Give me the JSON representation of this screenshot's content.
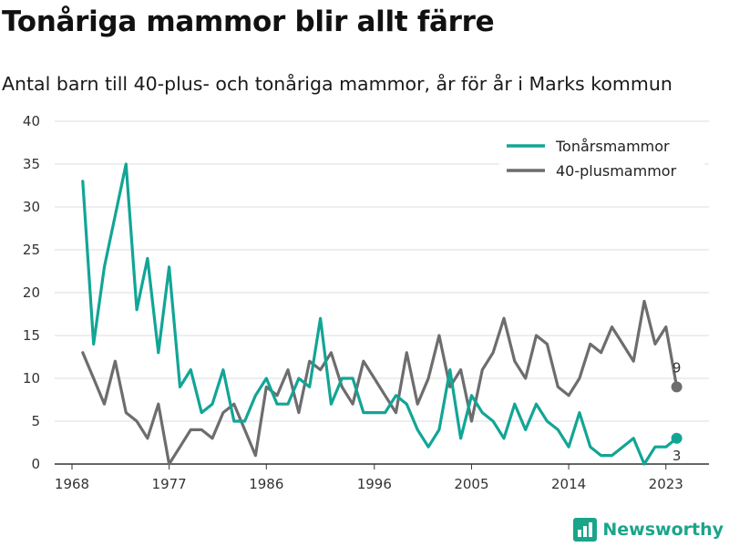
{
  "title": "Tonåriga mammor blir allt färre",
  "subtitle": "Antal barn till 40-plus- och tonåriga mammor, år för år i Marks kommun",
  "brand": "Newsworthy",
  "colors": {
    "teal": "#12a596",
    "gray": "#6d6d6f"
  },
  "chart_data": {
    "type": "line",
    "title": "Tonåriga mammor blir allt färre",
    "subtitle": "Antal barn till 40-plus- och tonåriga mammor, år för år i Marks kommun",
    "xlabel": "",
    "ylabel": "",
    "xlim": [
      1968,
      2024
    ],
    "ylim": [
      0,
      40
    ],
    "yticks": [
      0,
      5,
      10,
      15,
      20,
      25,
      30,
      35,
      40
    ],
    "xticks": [
      1968,
      1977,
      1986,
      1996,
      2005,
      2014,
      2023
    ],
    "grid": true,
    "legend": "top-right",
    "x": [
      1969,
      1970,
      1971,
      1972,
      1973,
      1974,
      1975,
      1976,
      1977,
      1978,
      1979,
      1980,
      1981,
      1982,
      1983,
      1984,
      1985,
      1986,
      1987,
      1988,
      1989,
      1990,
      1991,
      1992,
      1993,
      1994,
      1995,
      1996,
      1997,
      1998,
      1999,
      2000,
      2001,
      2002,
      2003,
      2004,
      2005,
      2006,
      2007,
      2008,
      2009,
      2010,
      2011,
      2012,
      2013,
      2014,
      2015,
      2016,
      2017,
      2018,
      2019,
      2020,
      2021,
      2022,
      2023,
      2024
    ],
    "series": [
      {
        "name": "Tonårsmammor",
        "color": "#12a596",
        "values": [
          33,
          14,
          23,
          29,
          35,
          18,
          24,
          13,
          23,
          9,
          11,
          6,
          7,
          11,
          5,
          5,
          8,
          10,
          7,
          7,
          10,
          9,
          17,
          7,
          10,
          10,
          6,
          6,
          6,
          8,
          7,
          4,
          2,
          4,
          11,
          3,
          8,
          6,
          5,
          3,
          7,
          4,
          7,
          5,
          4,
          2,
          6,
          2,
          1,
          1,
          2,
          3,
          0,
          2,
          2,
          3
        ],
        "end_label": "3"
      },
      {
        "name": "40-plusmammor",
        "color": "#6d6d6f",
        "values": [
          13,
          10,
          7,
          12,
          6,
          5,
          3,
          7,
          0,
          2,
          4,
          4,
          3,
          6,
          7,
          4,
          1,
          9,
          8,
          11,
          6,
          12,
          11,
          13,
          9,
          7,
          12,
          10,
          8,
          6,
          13,
          7,
          10,
          15,
          9,
          11,
          5,
          11,
          13,
          17,
          12,
          10,
          15,
          14,
          9,
          8,
          10,
          14,
          13,
          16,
          14,
          12,
          19,
          14,
          16,
          9
        ],
        "end_label": "9"
      }
    ]
  }
}
